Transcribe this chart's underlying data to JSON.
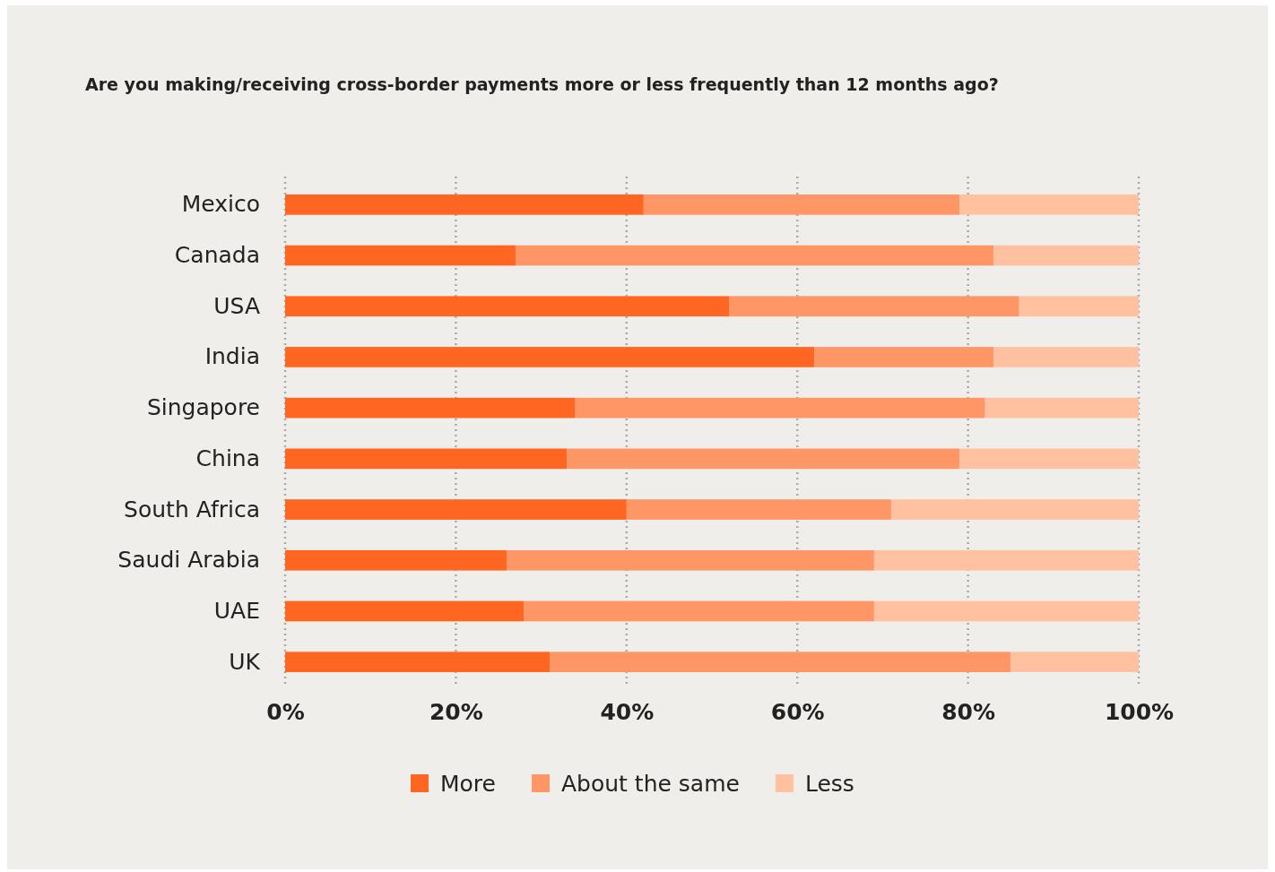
{
  "chart_data": {
    "type": "bar",
    "orientation": "horizontal",
    "stacked": true,
    "title": "Are you making/receiving cross-border payments more or less frequently than 12 months ago?",
    "categories": [
      "Mexico",
      "Canada",
      "USA",
      "India",
      "Singapore",
      "China",
      "South Africa",
      "Saudi Arabia",
      "UAE",
      "UK"
    ],
    "series": [
      {
        "name": "More",
        "color": "#ff6622",
        "values": [
          42,
          27,
          52,
          62,
          34,
          33,
          40,
          26,
          28,
          31
        ]
      },
      {
        "name": "About the same",
        "color": "#ff9666",
        "values": [
          37,
          56,
          34,
          21,
          48,
          46,
          31,
          43,
          41,
          54
        ]
      },
      {
        "name": "Less",
        "color": "#ffc1a0",
        "values": [
          21,
          17,
          14,
          17,
          18,
          21,
          29,
          31,
          31,
          15
        ]
      }
    ],
    "xlim": [
      0,
      100
    ],
    "xticks": [
      {
        "value": 0,
        "label": "0%"
      },
      {
        "value": 20,
        "label": "20%"
      },
      {
        "value": 40,
        "label": "40%"
      },
      {
        "value": 60,
        "label": "60%"
      },
      {
        "value": 80,
        "label": "80%"
      },
      {
        "value": 100,
        "label": "100%"
      }
    ],
    "grid": "x",
    "legend": "bottom"
  }
}
